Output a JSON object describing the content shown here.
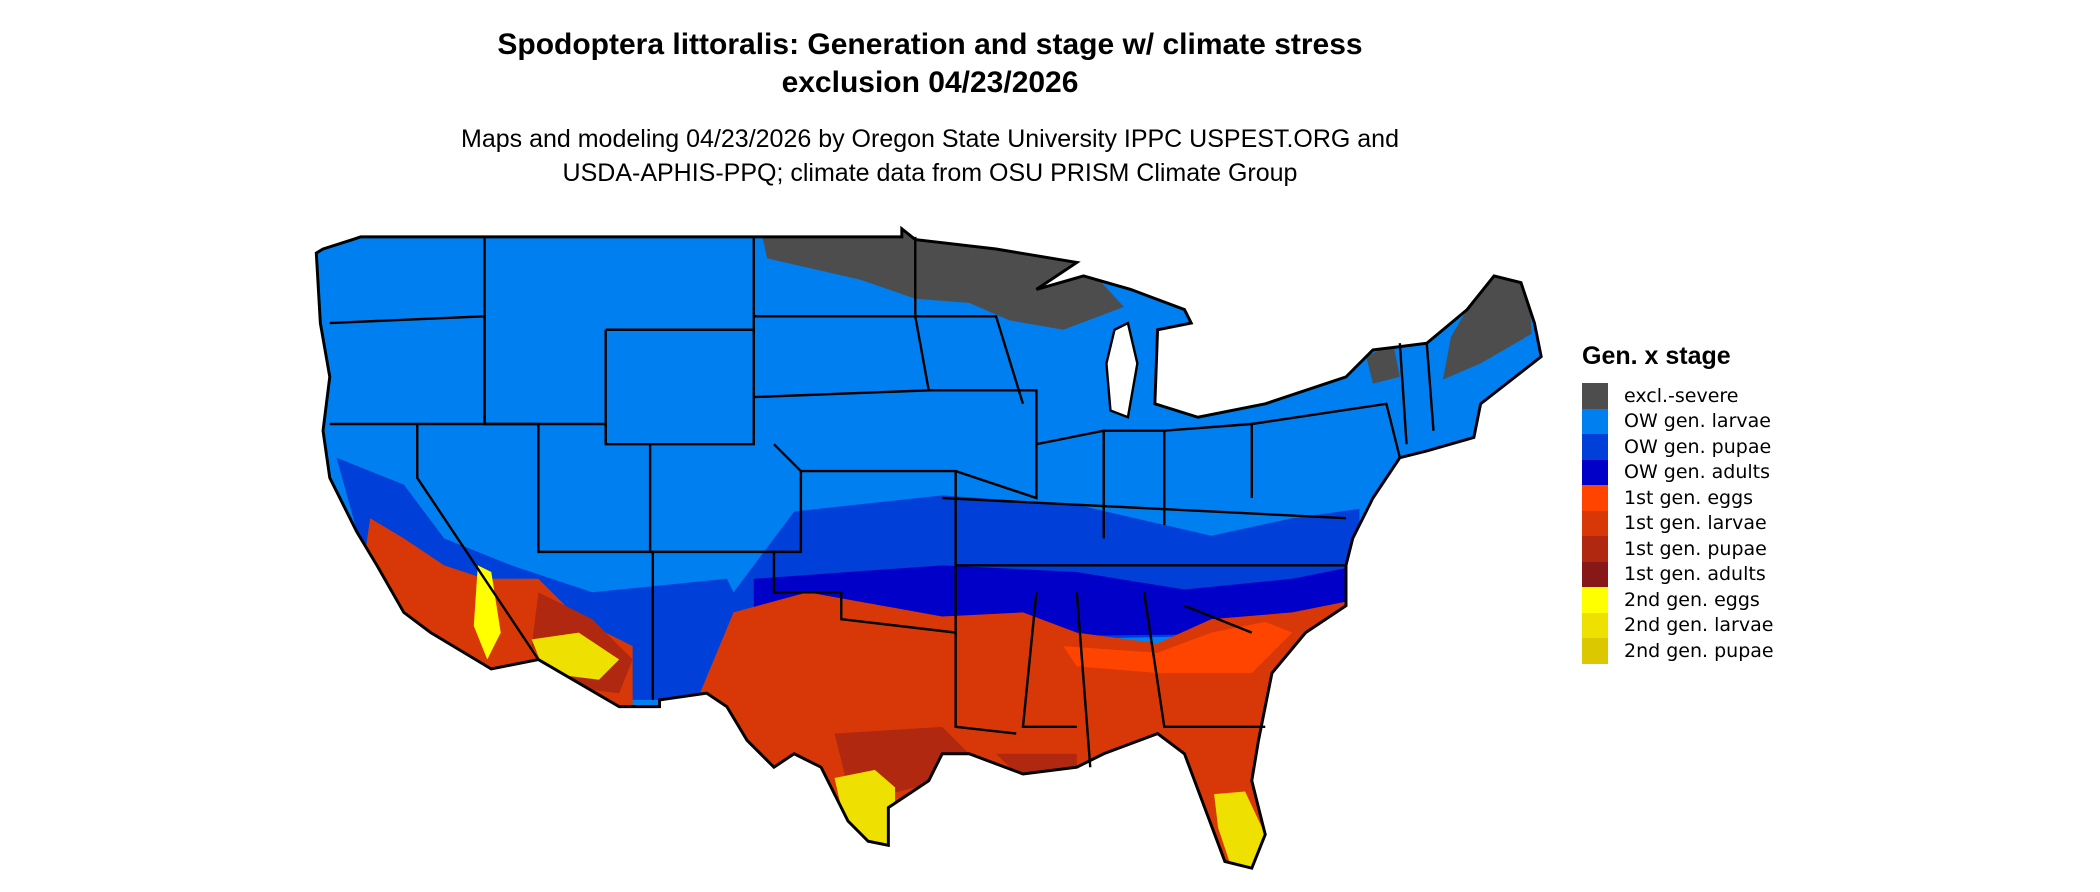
{
  "title": {
    "line1": "Spodoptera littoralis: Generation and stage w/ climate stress",
    "line2": "exclusion 04/23/2026"
  },
  "subtitle": {
    "line1": "Maps and modeling 04/23/2026 by Oregon State University IPPC USPEST.ORG and",
    "line2": "USDA-APHIS-PPQ; climate data from OSU PRISM Climate Group"
  },
  "legend": {
    "title": "Gen. x stage",
    "items": [
      {
        "label": "excl.-severe",
        "color": "#4d4d4d"
      },
      {
        "label": "OW gen. larvae",
        "color": "#0080f0"
      },
      {
        "label": "OW gen. pupae",
        "color": "#0040d8"
      },
      {
        "label": "OW gen. adults",
        "color": "#0000c8"
      },
      {
        "label": "1st gen. eggs",
        "color": "#ff4400"
      },
      {
        "label": "1st gen. larvae",
        "color": "#d83808"
      },
      {
        "label": "1st gen. pupae",
        "color": "#b02810"
      },
      {
        "label": "1st gen. adults",
        "color": "#881818"
      },
      {
        "label": "2nd gen. eggs",
        "color": "#ffff00"
      },
      {
        "label": "2nd gen. larvae",
        "color": "#eee000"
      },
      {
        "label": "2nd gen. pupae",
        "color": "#dcc800"
      }
    ]
  }
}
